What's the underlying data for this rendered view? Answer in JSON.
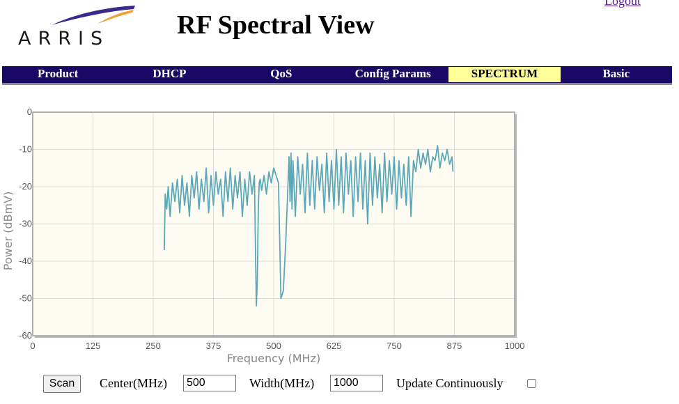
{
  "header": {
    "logo_text": "ARRIS",
    "title": "RF Spectral View",
    "logout_label": "Logout"
  },
  "nav": {
    "items": [
      {
        "label": "Product",
        "active": false
      },
      {
        "label": "DHCP",
        "active": false
      },
      {
        "label": "QoS",
        "active": false
      },
      {
        "label": "Config Params",
        "active": false
      },
      {
        "label": "SPECTRUM",
        "active": true
      },
      {
        "label": "Basic",
        "active": false
      }
    ]
  },
  "chart_data": {
    "type": "line",
    "xlabel": "Frequency (MHz)",
    "ylabel": "Power (dBmV)",
    "xlim": [
      0,
      1000
    ],
    "ylim": [
      -60,
      0
    ],
    "xticks": [
      "0",
      "125",
      "250",
      "375",
      "500",
      "625",
      "750",
      "875",
      "1000"
    ],
    "yticks": [
      "0",
      "-10",
      "-20",
      "-30",
      "-40",
      "-50",
      "-60"
    ],
    "grid": true,
    "series_color": "#5aa8b8",
    "background_color": "#fefcf2",
    "x": [
      273,
      275,
      278,
      281,
      285,
      290,
      295,
      300,
      305,
      310,
      315,
      320,
      325,
      330,
      335,
      340,
      345,
      350,
      355,
      360,
      365,
      370,
      375,
      380,
      385,
      390,
      395,
      400,
      405,
      410,
      415,
      420,
      425,
      430,
      435,
      440,
      445,
      450,
      455,
      460,
      462,
      464,
      466,
      468,
      470,
      472,
      475,
      480,
      485,
      490,
      495,
      500,
      505,
      510,
      515,
      520,
      525,
      530,
      532,
      534,
      536,
      538,
      540,
      545,
      550,
      555,
      560,
      565,
      570,
      575,
      580,
      585,
      590,
      595,
      600,
      605,
      610,
      615,
      620,
      625,
      630,
      635,
      640,
      645,
      650,
      655,
      660,
      665,
      670,
      675,
      680,
      685,
      690,
      695,
      700,
      705,
      710,
      715,
      720,
      725,
      730,
      735,
      740,
      745,
      750,
      755,
      760,
      765,
      770,
      775,
      780,
      785,
      790,
      795,
      800,
      805,
      810,
      815,
      820,
      825,
      830,
      835,
      840,
      845,
      850,
      855,
      860,
      865,
      870,
      872
    ],
    "y": [
      -37,
      -22,
      -26,
      -20,
      -28,
      -19,
      -24,
      -18,
      -27,
      -17,
      -25,
      -19,
      -28,
      -17,
      -23,
      -16,
      -26,
      -18,
      -24,
      -15,
      -27,
      -17,
      -25,
      -16,
      -22,
      -18,
      -28,
      -16,
      -24,
      -15,
      -26,
      -17,
      -23,
      -16,
      -28,
      -18,
      -25,
      -16,
      -22,
      -17,
      -35,
      -52,
      -45,
      -26,
      -19,
      -18,
      -21,
      -17,
      -22,
      -16,
      -19,
      -15,
      -17,
      -19,
      -50,
      -48,
      -35,
      -18,
      -12,
      -24,
      -11,
      -26,
      -13,
      -28,
      -12,
      -22,
      -14,
      -27,
      -11,
      -25,
      -13,
      -26,
      -12,
      -21,
      -14,
      -27,
      -11,
      -24,
      -13,
      -26,
      -10,
      -25,
      -12,
      -27,
      -11,
      -22,
      -13,
      -28,
      -12,
      -24,
      -11,
      -26,
      -13,
      -30,
      -11,
      -25,
      -12,
      -23,
      -14,
      -27,
      -11,
      -24,
      -13,
      -22,
      -12,
      -26,
      -13,
      -23,
      -14,
      -25,
      -12,
      -28,
      -13,
      -16,
      -10,
      -15,
      -11,
      -14,
      -10,
      -16,
      -12,
      -13,
      -9,
      -15,
      -11,
      -13,
      -10,
      -14,
      -12,
      -16
    ]
  },
  "controls": {
    "scan_label": "Scan",
    "center_label": "Center(MHz)",
    "center_value": "500",
    "width_label": "Width(MHz)",
    "width_value": "1000",
    "update_label": "Update Continuously",
    "update_checked": false
  }
}
